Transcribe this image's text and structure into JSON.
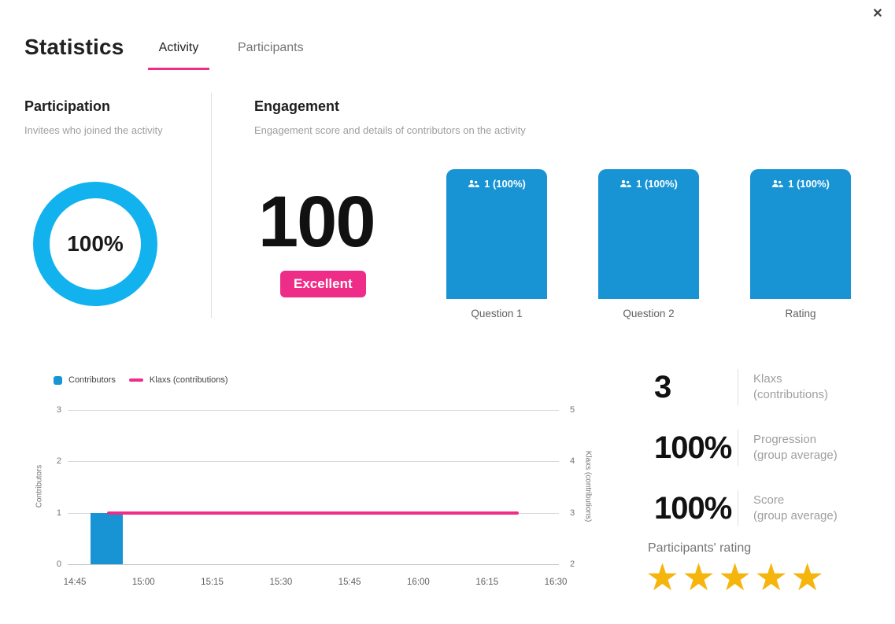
{
  "colors": {
    "accent_pink": "#ee2d88",
    "donut_cyan": "#12b2ef",
    "bar_blue": "#1894d5",
    "star_gold": "#f5b50d"
  },
  "window": {
    "close_icon": "✕"
  },
  "header": {
    "title": "Statistics",
    "tabs": [
      {
        "label": "Activity",
        "active": true
      },
      {
        "label": "Participants",
        "active": false
      }
    ]
  },
  "participation": {
    "title": "Participation",
    "subtitle": "Invitees who joined the activity",
    "donut_value": "100%",
    "donut_percent": 100
  },
  "engagement": {
    "title": "Engagement",
    "subtitle": "Engagement score and details of contributors on the activity",
    "score": "100",
    "score_badge": "Excellent",
    "bars": [
      {
        "label": "Question 1",
        "value": "1 (100%)"
      },
      {
        "label": "Question 2",
        "value": "1 (100%)"
      },
      {
        "label": "Rating",
        "value": "1 (100%)"
      }
    ]
  },
  "chart_data": {
    "type": "bar",
    "title": "",
    "x_ticks": [
      "14:45",
      "15:00",
      "15:15",
      "15:30",
      "15:45",
      "16:00",
      "16:15",
      "16:30"
    ],
    "bar_width_minutes": 7,
    "left_axis": {
      "label": "Contributors",
      "ticks": [
        0,
        1,
        2,
        3
      ],
      "range": [
        0,
        3
      ]
    },
    "right_axis": {
      "label": "Klaxs (contributions)",
      "ticks": [
        2,
        3,
        4,
        5
      ],
      "range": [
        2,
        5
      ]
    },
    "grid": true,
    "legend_position": "top-left",
    "series": [
      {
        "name": "Contributors",
        "type": "bar",
        "axis": "left",
        "color": "#1894d5",
        "points": [
          {
            "x": "14:52",
            "y": 1
          }
        ]
      },
      {
        "name": "Klaxs (contributions)",
        "type": "line",
        "axis": "right",
        "color": "#ee2d88",
        "points": [
          {
            "x": "14:52",
            "y": 3
          },
          {
            "x": "16:22",
            "y": 3
          }
        ]
      }
    ]
  },
  "stats": [
    {
      "value": "3",
      "label_line1": "Klaxs",
      "label_line2": "(contributions)"
    },
    {
      "value": "100%",
      "label_line1": "Progression",
      "label_line2": "(group average)"
    },
    {
      "value": "100%",
      "label_line1": "Score",
      "label_line2": "(group average)"
    }
  ],
  "rating": {
    "title": "Participants' rating",
    "stars": 5,
    "max_stars": 5,
    "star_icon": "★"
  }
}
